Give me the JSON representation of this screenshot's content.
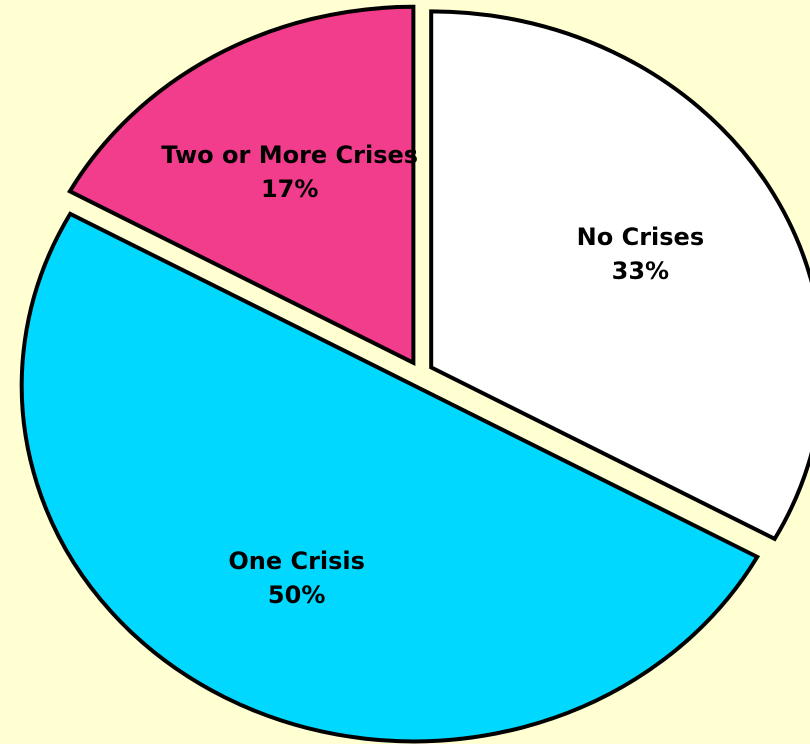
{
  "chart_data": {
    "type": "pie",
    "categories": [
      "No Crises",
      "One Crisis",
      "Two or More Crises"
    ],
    "values": [
      33,
      50,
      17
    ],
    "value_labels": [
      "33%",
      "50%",
      "17%"
    ],
    "colors": [
      "#ffffff",
      "#00d8ff",
      "#f23c8c"
    ]
  }
}
